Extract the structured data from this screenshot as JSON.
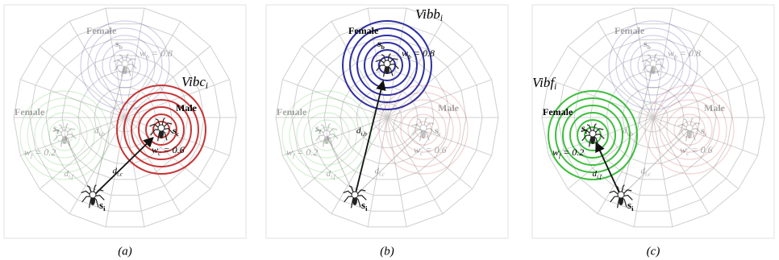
{
  "panels": [
    {
      "caption": "(a)",
      "vibration": {
        "name": "Vibc",
        "sub": "i"
      },
      "spiders": [
        {
          "gender": "Female",
          "symbol": "s",
          "sub": "b",
          "weight": {
            "symbol": "w",
            "sub": "b",
            "rest": "= 0.8"
          },
          "distance": {
            "symbol": "d",
            "sub": "i,b"
          }
        },
        {
          "gender": "Female",
          "symbol": "s",
          "sub": "f",
          "weight": {
            "symbol": "w",
            "sub": "f",
            "rest": "= 0.2"
          },
          "distance": {
            "symbol": "d",
            "sub": "i,f"
          }
        },
        {
          "gender": "Male",
          "symbol": "s",
          "sub": "c",
          "weight": {
            "symbol": "w",
            "sub": "c",
            "rest": "= 0.6"
          },
          "distance": {
            "symbol": "d",
            "sub": "i,c"
          }
        },
        {
          "symbol": "s",
          "sub": "i"
        }
      ]
    },
    {
      "caption": "(b)",
      "vibration": {
        "name": "Vibb",
        "sub": "i"
      },
      "spiders": [
        {
          "gender": "Female",
          "symbol": "s",
          "sub": "b",
          "weight": {
            "symbol": "w",
            "sub": "b",
            "rest": "= 0.8"
          },
          "distance": {
            "symbol": "d",
            "sub": "i,b"
          }
        },
        {
          "gender": "Female",
          "symbol": "s",
          "sub": "f",
          "weight": {
            "symbol": "w",
            "sub": "f",
            "rest": "= 0.2"
          },
          "distance": {
            "symbol": "d",
            "sub": "i,f"
          }
        },
        {
          "gender": "Male",
          "symbol": "s",
          "sub": "c",
          "weight": {
            "symbol": "w",
            "sub": "c",
            "rest": "= 0.6"
          },
          "distance": {
            "symbol": "d",
            "sub": "i,c"
          }
        },
        {
          "symbol": "s",
          "sub": "i"
        }
      ]
    },
    {
      "caption": "(c)",
      "vibration": {
        "name": "Vibf",
        "sub": "i"
      },
      "spiders": [
        {
          "gender": "Female",
          "symbol": "s",
          "sub": "b",
          "weight": {
            "symbol": "w",
            "sub": "b",
            "rest": "= 0.8"
          },
          "distance": {
            "symbol": "d",
            "sub": "i,b"
          }
        },
        {
          "gender": "Female",
          "symbol": "s",
          "sub": "f",
          "weight": {
            "symbol": "w",
            "sub": "f",
            "rest": "= 0.2"
          },
          "distance": {
            "symbol": "d",
            "sub": "i,f"
          }
        },
        {
          "gender": "Male",
          "symbol": "s",
          "sub": "c",
          "weight": {
            "symbol": "w",
            "sub": "c",
            "rest": "= 0.6"
          },
          "distance": {
            "symbol": "d",
            "sub": "i,c"
          }
        },
        {
          "symbol": "s",
          "sub": "i"
        }
      ]
    }
  ]
}
